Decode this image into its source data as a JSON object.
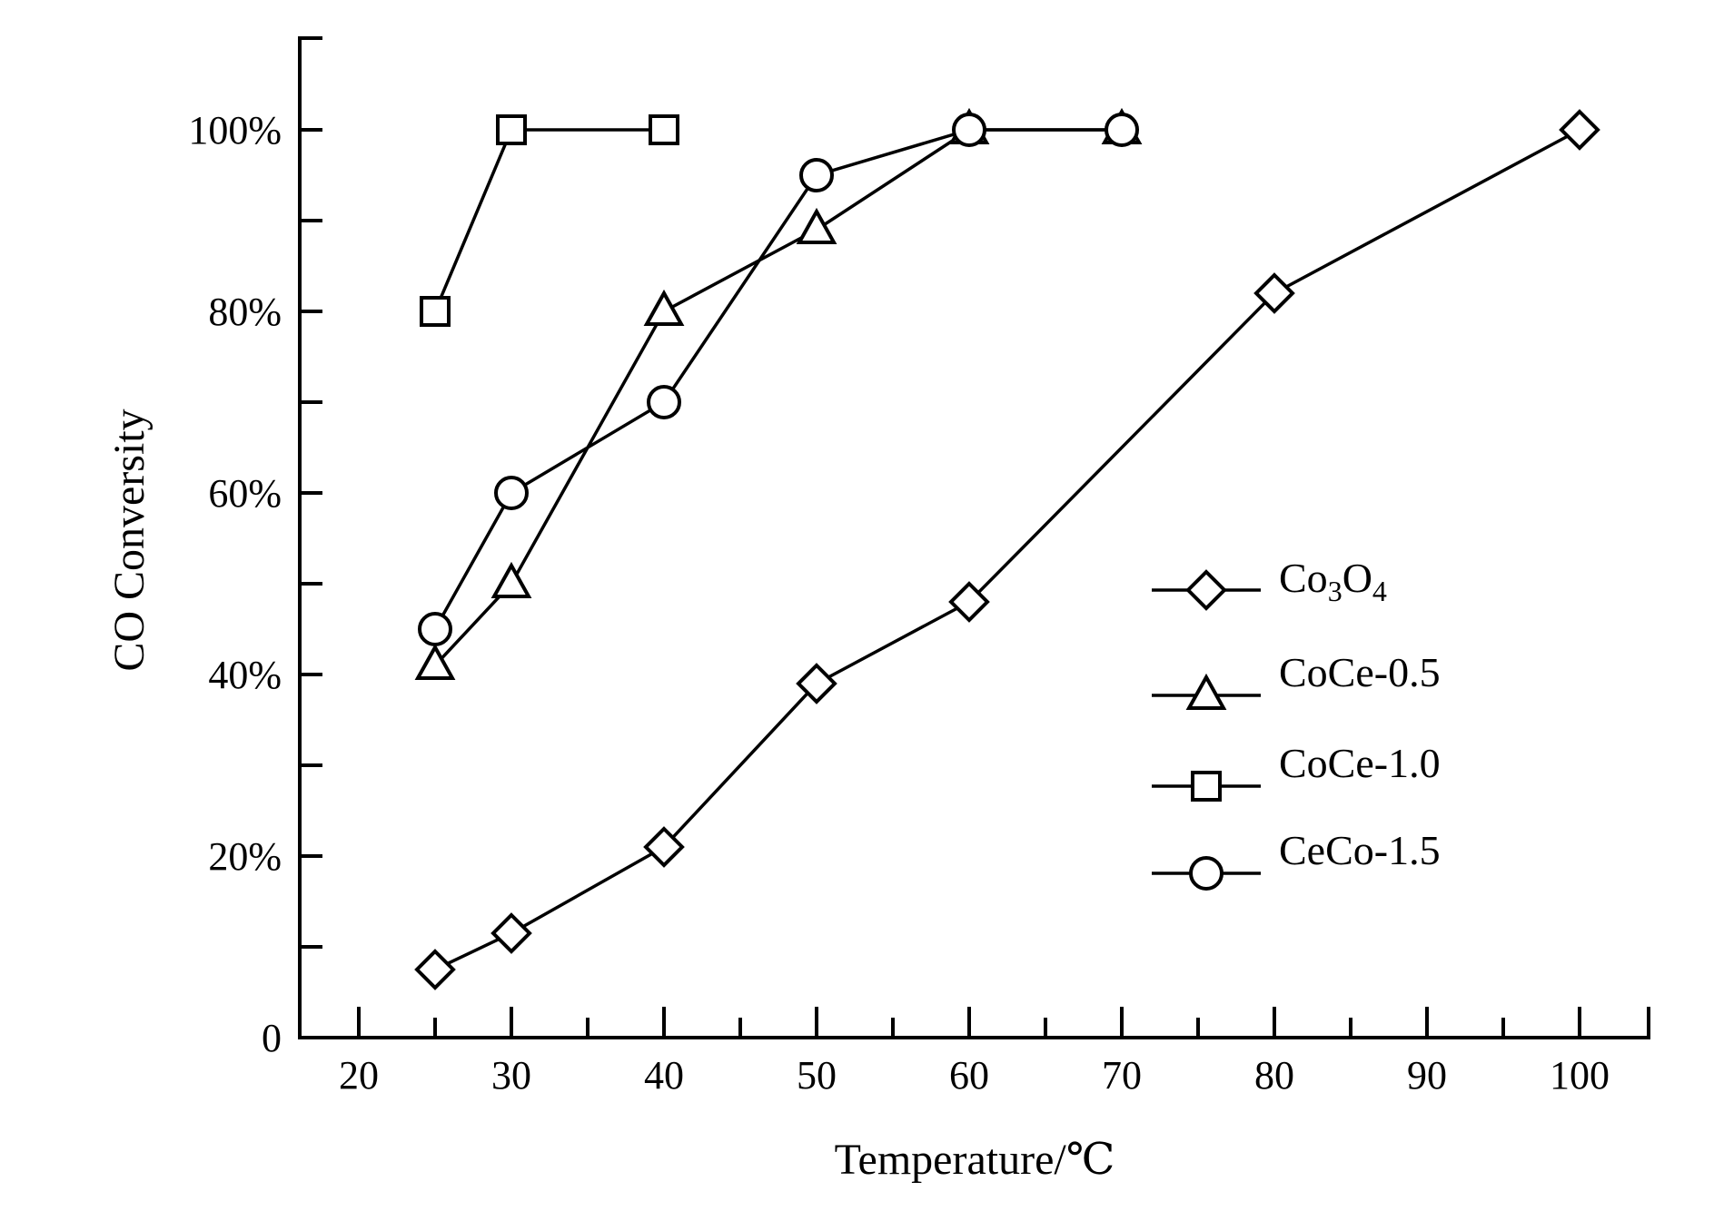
{
  "chart_data": {
    "type": "line",
    "xlabel": "Temperature/℃",
    "ylabel": "CO Conversity",
    "x_tick_labels": [
      "20",
      "30",
      "40",
      "50",
      "60",
      "70",
      "80",
      "90",
      "100"
    ],
    "y_tick_labels": [
      "0",
      "20%",
      "40%",
      "60%",
      "80%",
      "100%"
    ],
    "y_tick_values": [
      0,
      20,
      40,
      60,
      80,
      100
    ],
    "ylim": [
      0,
      110
    ],
    "grid": false,
    "legend_position": "right",
    "series": [
      {
        "name": "Co3O4",
        "name_parts": {
          "base": "Co",
          "sub1": "3",
          "mid": "O",
          "sub2": "4"
        },
        "marker": "diamond",
        "x": [
          25,
          30,
          40,
          50,
          60,
          80,
          100
        ],
        "y": [
          7.5,
          11.5,
          21,
          39,
          48,
          82,
          100
        ]
      },
      {
        "name": "CoCe-0.5",
        "marker": "triangle",
        "x": [
          25,
          30,
          40,
          50,
          60,
          70
        ],
        "y": [
          41,
          50,
          80,
          89,
          100,
          100
        ]
      },
      {
        "name": "CoCe-1.0",
        "marker": "square",
        "x": [
          25,
          30,
          40
        ],
        "y": [
          80,
          100,
          100
        ]
      },
      {
        "name": "CeCo-1.5",
        "marker": "circle",
        "x": [
          25,
          30,
          40,
          50,
          60,
          70
        ],
        "y": [
          45,
          60,
          70,
          95,
          100,
          100
        ]
      }
    ]
  }
}
